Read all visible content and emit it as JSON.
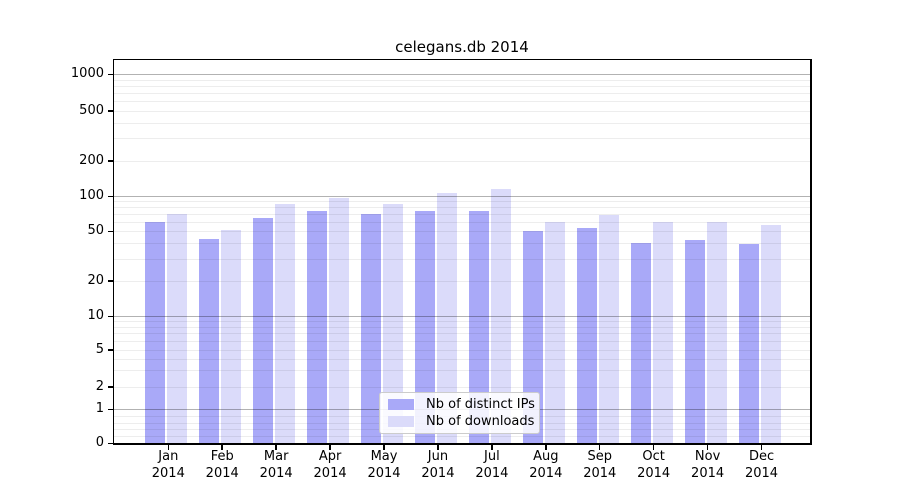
{
  "chart_data": {
    "type": "bar",
    "title": "celegans.db 2014",
    "yscale": "symlog",
    "ylim": [
      0,
      1300
    ],
    "grid": true,
    "y_ticks": [
      0,
      1,
      2,
      5,
      10,
      20,
      50,
      100,
      200,
      500,
      1000
    ],
    "categories": [
      {
        "month": "Jan",
        "year": "2014"
      },
      {
        "month": "Feb",
        "year": "2014"
      },
      {
        "month": "Mar",
        "year": "2014"
      },
      {
        "month": "Apr",
        "year": "2014"
      },
      {
        "month": "May",
        "year": "2014"
      },
      {
        "month": "Jun",
        "year": "2014"
      },
      {
        "month": "Jul",
        "year": "2014"
      },
      {
        "month": "Aug",
        "year": "2014"
      },
      {
        "month": "Sep",
        "year": "2014"
      },
      {
        "month": "Oct",
        "year": "2014"
      },
      {
        "month": "Nov",
        "year": "2014"
      },
      {
        "month": "Dec",
        "year": "2014"
      }
    ],
    "series": [
      {
        "name": "Nb of distinct IPs",
        "color": "#a9a9f8",
        "values": [
          60,
          43,
          65,
          75,
          70,
          75,
          74,
          50,
          53,
          40,
          42,
          39
        ]
      },
      {
        "name": "Nb of downloads",
        "color": "#dbdbfa",
        "values": [
          70,
          51,
          85,
          97,
          85,
          107,
          115,
          60,
          68,
          60,
          60,
          56
        ]
      }
    ],
    "legend": {
      "position": "lower center",
      "entries": [
        "Nb of distinct IPs",
        "Nb of downloads"
      ]
    },
    "colors": {
      "major_grid": "#b3b3b3",
      "minor_grid": "#ececec",
      "axis": "#000000",
      "background": "#ffffff"
    }
  }
}
